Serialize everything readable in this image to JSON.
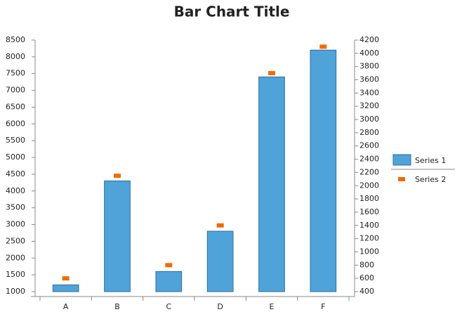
{
  "chart_data": {
    "type": "bar",
    "title": "Bar Chart Title",
    "categories": [
      "A",
      "B",
      "C",
      "D",
      "E",
      "F"
    ],
    "series": [
      {
        "name": "Series 1",
        "color": "#4fa3d9",
        "values": [
          1200,
          4300,
          1600,
          2800,
          7400,
          8200
        ]
      },
      {
        "name": "Series 2",
        "color": "#f26b00",
        "axis": "y2",
        "values": [
          600,
          2150,
          800,
          1400,
          3700,
          4100
        ]
      }
    ],
    "ylim": [
      1000,
      8500
    ],
    "yticks": [
      1000,
      1500,
      2000,
      2500,
      3000,
      3500,
      4000,
      4500,
      5000,
      5500,
      6000,
      6500,
      7000,
      7500,
      8000,
      8500
    ],
    "y2lim": [
      400,
      4200
    ],
    "y2ticks": [
      400,
      600,
      800,
      1000,
      1200,
      1400,
      1600,
      1800,
      2000,
      2200,
      2400,
      2600,
      2800,
      3000,
      3200,
      3400,
      3600,
      3800,
      4000,
      4200
    ],
    "grid": false,
    "legend": "right"
  }
}
